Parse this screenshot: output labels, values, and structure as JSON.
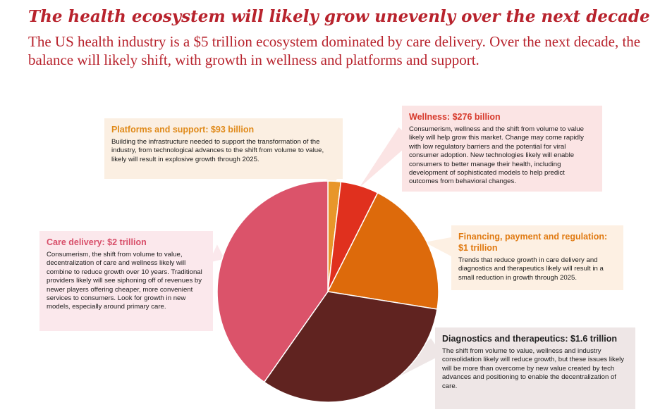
{
  "title": "The health ecosystem will likely grow unevenly over the next decade",
  "subtitle": "The US health industry is a $5 trillion ecosystem dominated by care delivery. Over the next decade, the balance will likely shift, with growth in wellness and platforms and support.",
  "callouts": {
    "platforms": {
      "heading": "Platforms and support: $93 billion",
      "body": "Building the infrastructure needed to support the transformation of the industry, from technological advances to the shift from volume to value, likely will result in explosive growth through 2025."
    },
    "wellness": {
      "heading": "Wellness: $276 billion",
      "body": "Consumerism, wellness and the shift from volume to value likely will help grow this market. Change may come rapidly with low regulatory barriers and the potential for viral consumer adoption. New technologies likely will enable consumers to better manage their health, including development of sophisticated models to help predict outcomes from behavioral changes."
    },
    "care": {
      "heading": "Care delivery: $2 trillion",
      "body": "Consumerism, the shift from volume to value, decentralization of care and wellness likely will combine to reduce growth over 10 years. Traditional providers likely will see siphoning off of revenues by newer players offering cheaper, more convenient services to consumers. Look for growth in new models, especially around primary care."
    },
    "financing": {
      "heading": "Financing, payment and regulation: $1 trillion",
      "body": "Trends that reduce growth in care delivery and diagnostics and therapeutics likely will result in a small reduction in growth through 2025."
    },
    "diagnostics": {
      "heading": "Diagnostics and therapeutics: $1.6 trillion",
      "body": "The shift from volume to value, wellness and industry consolidation likely will reduce growth, but these issues likely will be more than overcome by new value created by tech advances and positioning to enable the decentralization of care."
    }
  },
  "chart_data": {
    "type": "pie",
    "unit": "USD billions",
    "slices": [
      {
        "label": "Platforms and support",
        "value": 93,
        "display": "$93 billion",
        "color": "#e8962a"
      },
      {
        "label": "Wellness",
        "value": 276,
        "display": "$276 billion",
        "color": "#e0301e"
      },
      {
        "label": "Financing, payment and regulation",
        "value": 1000,
        "display": "$1 trillion",
        "color": "#dd6a0b"
      },
      {
        "label": "Diagnostics and therapeutics",
        "value": 1600,
        "display": "$1.6 trillion",
        "color": "#602320"
      },
      {
        "label": "Care delivery",
        "value": 2000,
        "display": "$2 trillion",
        "color": "#db536a"
      }
    ],
    "start": "12 o'clock",
    "direction": "clockwise"
  }
}
